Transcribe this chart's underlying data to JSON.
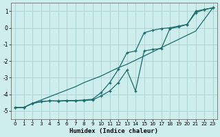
{
  "xlabel": "Humidex (Indice chaleur)",
  "background_color": "#ceeeed",
  "grid_color": "#aed4d3",
  "line_color": "#1a6b6b",
  "xlim": [
    -0.5,
    23.5
  ],
  "ylim": [
    -5.5,
    1.5
  ],
  "x": [
    0,
    1,
    2,
    3,
    4,
    5,
    6,
    7,
    8,
    9,
    10,
    11,
    12,
    13,
    14,
    15,
    16,
    17,
    18,
    19,
    20,
    21,
    22,
    23
  ],
  "y_straight": [
    -4.8,
    -4.8,
    -4.55,
    -4.35,
    -4.15,
    -3.95,
    -3.75,
    -3.55,
    -3.3,
    -3.1,
    -2.9,
    -2.65,
    -2.4,
    -2.2,
    -1.95,
    -1.7,
    -1.45,
    -1.2,
    -0.95,
    -0.7,
    -0.45,
    -0.2,
    0.5,
    1.2
  ],
  "y_upper": [
    -4.8,
    -4.8,
    -4.55,
    -4.45,
    -4.4,
    -4.4,
    -4.38,
    -4.38,
    -4.35,
    -4.3,
    -3.9,
    -3.3,
    -2.5,
    -1.5,
    -1.4,
    -0.3,
    -0.15,
    -0.05,
    0.0,
    0.1,
    0.2,
    1.0,
    1.1,
    1.2
  ],
  "y_lower": [
    -4.8,
    -4.8,
    -4.55,
    -4.45,
    -4.4,
    -4.42,
    -4.4,
    -4.4,
    -4.38,
    -4.35,
    -4.1,
    -3.8,
    -3.3,
    -2.55,
    -3.8,
    -1.4,
    -1.3,
    -1.25,
    -0.05,
    0.05,
    0.2,
    0.9,
    1.1,
    1.2
  ],
  "yticks": [
    -5,
    -4,
    -3,
    -2,
    -1,
    0,
    1
  ],
  "xticks": [
    0,
    1,
    2,
    3,
    4,
    5,
    6,
    7,
    8,
    9,
    10,
    11,
    12,
    13,
    14,
    15,
    16,
    17,
    18,
    19,
    20,
    21,
    22,
    23
  ]
}
